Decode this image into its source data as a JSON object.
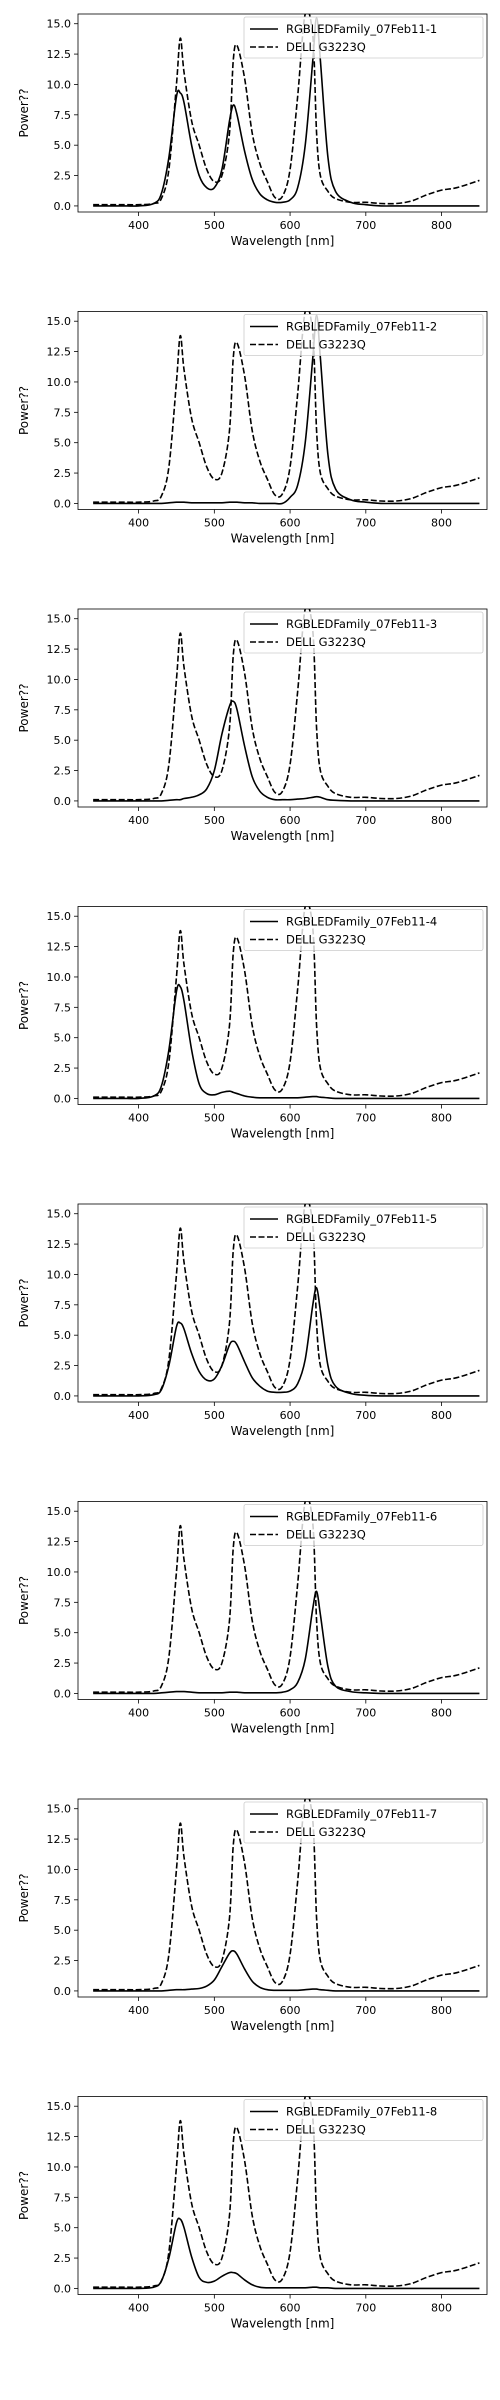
{
  "shared": {
    "xlabel": "Wavelength [nm]",
    "ylabel": "Power??",
    "reference_series": "DELL G3223Q",
    "x_ticks": [
      400,
      500,
      600,
      700,
      800
    ],
    "y_ticks": [
      "0.0",
      "2.5",
      "5.0",
      "7.5",
      "10.0",
      "12.5",
      "15.0"
    ],
    "xlim": [
      320,
      860
    ],
    "ylim": [
      -0.5,
      15.8
    ],
    "reference_values": [
      0.1,
      0.1,
      0.1,
      0.2,
      0.6,
      3.0,
      10.0,
      13.8,
      11.0,
      7.0,
      5.0,
      3.0,
      2.0,
      2.5,
      6.0,
      12.0,
      13.2,
      10.5,
      6.0,
      3.5,
      2.0,
      0.7,
      0.8,
      3.0,
      9.0,
      15.8,
      14.0,
      6.0,
      2.5,
      1.2,
      0.6,
      0.3,
      0.3,
      0.2,
      0.2,
      0.4,
      0.9,
      1.3,
      1.5,
      2.1
    ],
    "line_color": "#000000"
  },
  "chart_data": [
    {
      "type": "line",
      "x": [
        340,
        380,
        400,
        420,
        430,
        440,
        450,
        455,
        460,
        470,
        480,
        490,
        500,
        510,
        520,
        525,
        530,
        540,
        550,
        560,
        570,
        580,
        590,
        600,
        610,
        620,
        630,
        635,
        640,
        650,
        660,
        680,
        700,
        720,
        740,
        760,
        780,
        800,
        820,
        850
      ],
      "series": [
        {
          "name": "RGBLEDFamily_07Feb11-1",
          "values": [
            0,
            0,
            0,
            0.2,
            1.0,
            4.0,
            9.0,
            9.3,
            8.5,
            5.0,
            2.5,
            1.5,
            1.5,
            3.0,
            7.0,
            8.3,
            7.5,
            4.5,
            2.2,
            1.0,
            0.5,
            0.3,
            0.3,
            0.5,
            1.5,
            5.0,
            12.0,
            15.5,
            12.0,
            4.0,
            1.2,
            0.3,
            0.1,
            0,
            0,
            0,
            0,
            0,
            0,
            0
          ]
        },
        {
          "name": "DELL G3223Q"
        }
      ]
    },
    {
      "type": "line",
      "x": [
        340,
        380,
        400,
        420,
        430,
        440,
        450,
        455,
        460,
        470,
        480,
        490,
        500,
        510,
        520,
        525,
        530,
        540,
        550,
        560,
        570,
        580,
        590,
        600,
        610,
        620,
        630,
        635,
        640,
        650,
        660,
        680,
        700,
        720,
        740,
        760,
        780,
        800,
        820,
        850
      ],
      "series": [
        {
          "name": "RGBLEDFamily_07Feb11-2",
          "values": [
            0,
            0,
            0,
            0,
            0,
            0.05,
            0.1,
            0.1,
            0.1,
            0.05,
            0.05,
            0.05,
            0.05,
            0.05,
            0.1,
            0.1,
            0.1,
            0.05,
            0.05,
            0,
            0,
            0,
            0,
            0.5,
            1.5,
            5.0,
            12.0,
            15.5,
            12.0,
            4.0,
            1.2,
            0.3,
            0.1,
            0,
            0,
            0,
            0,
            0,
            0,
            0
          ]
        },
        {
          "name": "DELL G3223Q"
        }
      ]
    },
    {
      "type": "line",
      "x": [
        340,
        380,
        400,
        420,
        430,
        440,
        450,
        455,
        460,
        470,
        480,
        490,
        500,
        510,
        520,
        525,
        530,
        540,
        550,
        560,
        570,
        580,
        590,
        600,
        610,
        620,
        630,
        635,
        640,
        650,
        660,
        680,
        700,
        720,
        740,
        760,
        780,
        800,
        820,
        850
      ],
      "series": [
        {
          "name": "RGBLEDFamily_07Feb11-3",
          "values": [
            0,
            0,
            0,
            0,
            0,
            0.05,
            0.1,
            0.1,
            0.2,
            0.3,
            0.5,
            1.0,
            2.5,
            5.5,
            7.8,
            8.2,
            7.5,
            4.5,
            2.0,
            0.8,
            0.3,
            0.1,
            0.1,
            0.1,
            0.15,
            0.2,
            0.3,
            0.35,
            0.3,
            0.1,
            0.05,
            0,
            0,
            0,
            0,
            0,
            0,
            0,
            0,
            0
          ]
        },
        {
          "name": "DELL G3223Q"
        }
      ]
    },
    {
      "type": "line",
      "x": [
        340,
        380,
        400,
        420,
        430,
        440,
        450,
        455,
        460,
        470,
        480,
        490,
        500,
        510,
        520,
        525,
        530,
        540,
        550,
        560,
        570,
        580,
        590,
        600,
        610,
        620,
        630,
        635,
        640,
        650,
        660,
        680,
        700,
        720,
        740,
        760,
        780,
        800,
        820,
        850
      ],
      "series": [
        {
          "name": "RGBLEDFamily_07Feb11-4",
          "values": [
            0,
            0,
            0,
            0.2,
            1.0,
            4.0,
            8.8,
            9.2,
            8.0,
            4.0,
            1.2,
            0.4,
            0.3,
            0.5,
            0.6,
            0.5,
            0.4,
            0.2,
            0.1,
            0.05,
            0.05,
            0.05,
            0.05,
            0.05,
            0.05,
            0.1,
            0.15,
            0.15,
            0.1,
            0.05,
            0,
            0,
            0,
            0,
            0,
            0,
            0,
            0,
            0,
            0
          ]
        },
        {
          "name": "DELL G3223Q"
        }
      ]
    },
    {
      "type": "line",
      "x": [
        340,
        380,
        400,
        420,
        430,
        440,
        450,
        455,
        460,
        470,
        480,
        490,
        500,
        510,
        520,
        525,
        530,
        540,
        550,
        560,
        570,
        580,
        590,
        600,
        610,
        620,
        630,
        635,
        640,
        650,
        660,
        680,
        700,
        720,
        740,
        760,
        780,
        800,
        820,
        850
      ],
      "series": [
        {
          "name": "RGBLEDFamily_07Feb11-5",
          "values": [
            0,
            0,
            0,
            0.1,
            0.5,
            2.5,
            5.7,
            6.0,
            5.5,
            3.5,
            2.0,
            1.3,
            1.4,
            2.5,
            4.2,
            4.5,
            4.2,
            2.8,
            1.5,
            0.8,
            0.4,
            0.3,
            0.3,
            0.4,
            1.0,
            3.0,
            7.5,
            8.9,
            7.0,
            2.5,
            0.8,
            0.2,
            0.05,
            0,
            0,
            0,
            0,
            0,
            0,
            0
          ]
        },
        {
          "name": "DELL G3223Q"
        }
      ]
    },
    {
      "type": "line",
      "x": [
        340,
        380,
        400,
        420,
        430,
        440,
        450,
        455,
        460,
        470,
        480,
        490,
        500,
        510,
        520,
        525,
        530,
        540,
        550,
        560,
        570,
        580,
        590,
        600,
        610,
        620,
        630,
        635,
        640,
        650,
        660,
        680,
        700,
        720,
        740,
        760,
        780,
        800,
        820,
        850
      ],
      "series": [
        {
          "name": "RGBLEDFamily_07Feb11-6",
          "values": [
            0,
            0,
            0,
            0,
            0.05,
            0.1,
            0.15,
            0.15,
            0.15,
            0.1,
            0.05,
            0.05,
            0.05,
            0.05,
            0.1,
            0.1,
            0.1,
            0.05,
            0.05,
            0.05,
            0.05,
            0.05,
            0.1,
            0.3,
            0.9,
            2.8,
            7.0,
            8.4,
            6.5,
            2.2,
            0.6,
            0.15,
            0.05,
            0,
            0,
            0,
            0,
            0,
            0,
            0
          ]
        },
        {
          "name": "DELL G3223Q"
        }
      ]
    },
    {
      "type": "line",
      "x": [
        340,
        380,
        400,
        420,
        430,
        440,
        450,
        455,
        460,
        470,
        480,
        490,
        500,
        510,
        520,
        525,
        530,
        540,
        550,
        560,
        570,
        580,
        590,
        600,
        610,
        620,
        630,
        635,
        640,
        650,
        660,
        680,
        700,
        720,
        740,
        760,
        780,
        800,
        820,
        850
      ],
      "series": [
        {
          "name": "RGBLEDFamily_07Feb11-7",
          "values": [
            0,
            0,
            0,
            0,
            0,
            0.05,
            0.1,
            0.1,
            0.1,
            0.15,
            0.2,
            0.4,
            0.9,
            2.0,
            3.1,
            3.3,
            3.0,
            1.8,
            0.8,
            0.3,
            0.1,
            0.05,
            0.05,
            0.05,
            0.05,
            0.1,
            0.15,
            0.15,
            0.1,
            0.05,
            0,
            0,
            0,
            0,
            0,
            0,
            0,
            0,
            0,
            0
          ]
        },
        {
          "name": "DELL G3223Q"
        }
      ]
    },
    {
      "type": "line",
      "x": [
        340,
        380,
        400,
        420,
        430,
        440,
        450,
        455,
        460,
        470,
        480,
        490,
        500,
        510,
        520,
        525,
        530,
        540,
        550,
        560,
        570,
        580,
        590,
        600,
        610,
        620,
        630,
        635,
        640,
        650,
        660,
        680,
        700,
        720,
        740,
        760,
        780,
        800,
        820,
        850
      ],
      "series": [
        {
          "name": "RGBLEDFamily_07Feb11-8",
          "values": [
            0,
            0,
            0,
            0.1,
            0.6,
            2.5,
            5.4,
            5.7,
            5.0,
            2.6,
            0.9,
            0.5,
            0.6,
            1.0,
            1.3,
            1.3,
            1.2,
            0.7,
            0.3,
            0.1,
            0.05,
            0.05,
            0.05,
            0.05,
            0.05,
            0.05,
            0.1,
            0.1,
            0.05,
            0.05,
            0,
            0,
            0,
            0,
            0,
            0,
            0,
            0,
            0,
            0
          ]
        },
        {
          "name": "DELL G3223Q"
        }
      ]
    }
  ]
}
